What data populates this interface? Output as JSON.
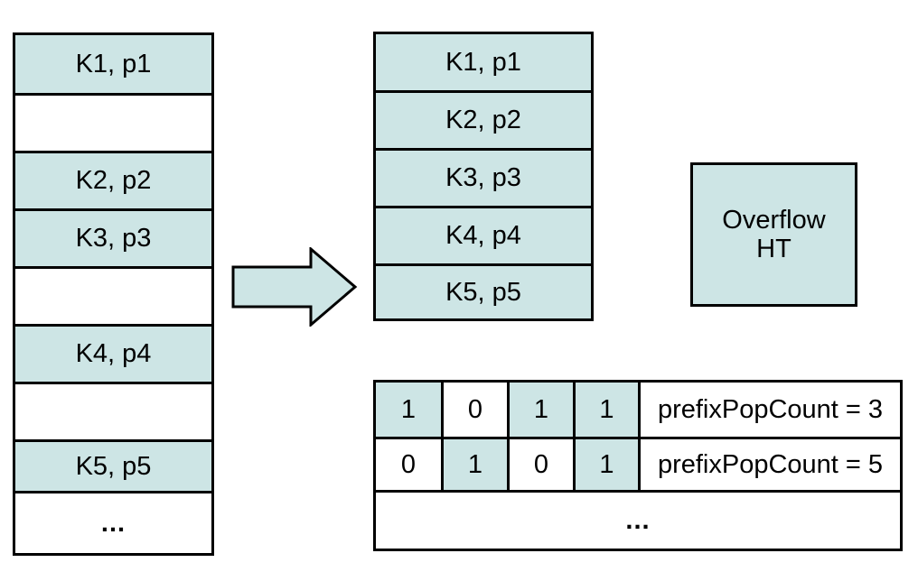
{
  "left_table": {
    "rows": [
      {
        "label": "K1, p1",
        "filled": true
      },
      {
        "label": "",
        "filled": false
      },
      {
        "label": "K2, p2",
        "filled": true
      },
      {
        "label": "K3, p3",
        "filled": true
      },
      {
        "label": "",
        "filled": false
      },
      {
        "label": "K4, p4",
        "filled": true
      },
      {
        "label": "",
        "filled": false
      },
      {
        "label": "K5, p5",
        "filled": true
      },
      {
        "label": "...",
        "filled": false
      }
    ]
  },
  "right_table": {
    "rows": [
      "K1, p1",
      "K2, p2",
      "K3, p3",
      "K4, p4",
      "K5, p5"
    ]
  },
  "overflow": {
    "line1": "Overflow",
    "line2": "HT"
  },
  "bitmap": {
    "rows": [
      {
        "bits": [
          "1",
          "0",
          "1",
          "1"
        ],
        "filled": [
          true,
          false,
          true,
          true
        ],
        "label": "prefixPopCount = 3"
      },
      {
        "bits": [
          "0",
          "1",
          "0",
          "1"
        ],
        "filled": [
          false,
          true,
          false,
          true
        ],
        "label": "prefixPopCount = 5"
      }
    ],
    "ellipsis": "..."
  },
  "colors": {
    "fill": "#cde5e5",
    "stroke": "#000000",
    "background": "#ffffff"
  }
}
